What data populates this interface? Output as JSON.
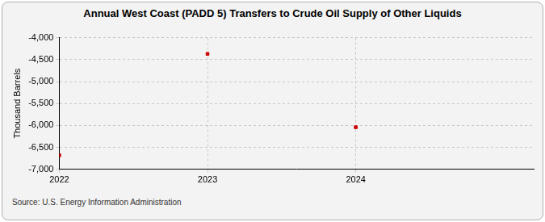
{
  "chart_data": {
    "type": "scatter",
    "title": "Annual West Coast (PADD 5) Transfers to Crude Oil Supply of Other Liquids",
    "y_label": "Thousand Barrels",
    "source": "Source: U.S. Energy Information Administration",
    "x": [
      2022,
      2023,
      2024
    ],
    "values": [
      -6680,
      -4370,
      -6040
    ],
    "color": "#cc0000",
    "marker": "square",
    "xlim": [
      2022,
      2025.2
    ],
    "xticks": [
      2022,
      2023,
      2024
    ],
    "ylim": [
      -7000,
      -4000
    ],
    "yticks": [
      {
        "value": -7000,
        "label": "-7,000"
      },
      {
        "value": -6500,
        "label": "-6,500"
      },
      {
        "value": -6000,
        "label": "-6,000"
      },
      {
        "value": -5500,
        "label": "-5,500"
      },
      {
        "value": -5000,
        "label": "-5,000"
      },
      {
        "value": -4500,
        "label": "-4,500"
      },
      {
        "value": -4000,
        "label": "-4,000"
      }
    ],
    "grid": true
  }
}
